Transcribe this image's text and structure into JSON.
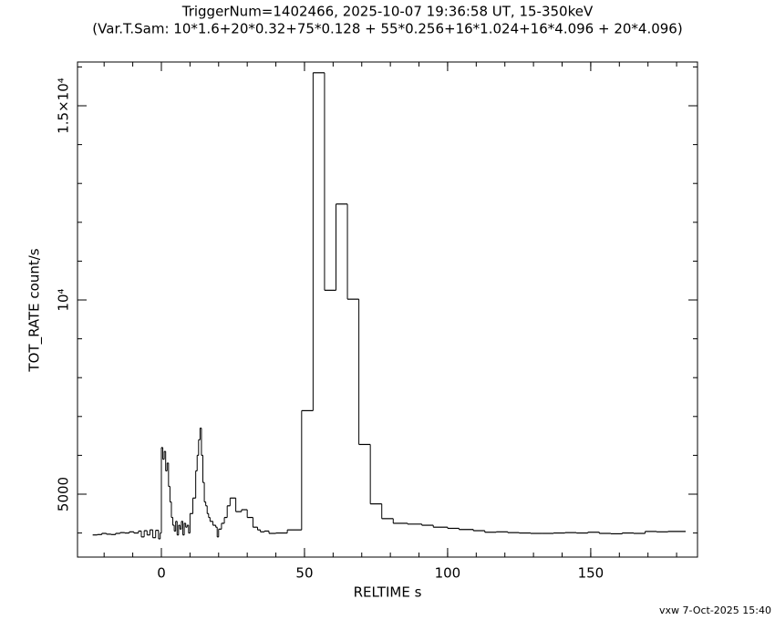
{
  "chart_data": {
    "type": "step",
    "title": "TriggerNum=1402466, 2025-10-07 19:36:58 UT, 15-350keV",
    "subtitle": "(Var.T.Sam: 10*1.6+20*0.32+75*0.128  +  55*0.256+16*1.024+16*4.096  +  20*4.096)",
    "x_label": "RELTIME  s",
    "y_label": "TOT_RATE  count/s",
    "footer": "vxw  7-Oct-2025 15:40",
    "color": "#000000",
    "xlim": [
      -29.3,
      187.3
    ],
    "ylim": [
      3380,
      16127
    ],
    "xticks": [
      0,
      50,
      100,
      150
    ],
    "yticks": [
      5000,
      {
        "value": 10000,
        "label": "10⁴"
      },
      {
        "value": 15000,
        "label": "1.5×10⁴"
      }
    ],
    "series": [
      {
        "name": "TOT_RATE",
        "x": [
          -24,
          -22.4,
          -20.8,
          -19.2,
          -17.6,
          -16,
          -14.4,
          -12.8,
          -11.2,
          -9.6,
          -8,
          -7,
          -6,
          -5,
          -4,
          -3,
          -2,
          -1,
          -0.4,
          0,
          0.5,
          1,
          1.5,
          2,
          2.5,
          3,
          3.5,
          4,
          4.5,
          5,
          5.5,
          6,
          6.5,
          7,
          7.5,
          8,
          8.5,
          9,
          9.5,
          10,
          11,
          12,
          12.5,
          13,
          13.5,
          14,
          14.5,
          15,
          15.5,
          16,
          16.5,
          17,
          18,
          19,
          19.5,
          20,
          21,
          22,
          23,
          24,
          26,
          28,
          30,
          32,
          33.6,
          34.6,
          36,
          37.6,
          40,
          44,
          49,
          53,
          57,
          61,
          65,
          69,
          73,
          77,
          81,
          86,
          91,
          95,
          100,
          104,
          109,
          113,
          117,
          121,
          125,
          129,
          133,
          137,
          141,
          145,
          149,
          153,
          157,
          161,
          165,
          169,
          173,
          177,
          183
        ],
        "values": [
          3950,
          3960,
          3990,
          3970,
          3960,
          3990,
          4010,
          4000,
          4030,
          4000,
          4050,
          3900,
          4060,
          3950,
          4080,
          3880,
          4070,
          3850,
          4000,
          6200,
          5900,
          6100,
          5600,
          5800,
          5200,
          4800,
          4400,
          4200,
          4050,
          4300,
          3950,
          4200,
          4100,
          4300,
          3950,
          4250,
          4150,
          4200,
          4000,
          4500,
          4900,
          5600,
          6000,
          6400,
          6700,
          6000,
          5300,
          4800,
          4700,
          4500,
          4400,
          4300,
          4200,
          4150,
          3900,
          4100,
          4250,
          4400,
          4700,
          4900,
          4550,
          4600,
          4400,
          4150,
          4080,
          4030,
          4050,
          3990,
          4000,
          4080,
          7150,
          15850,
          10250,
          12470,
          10020,
          6280,
          4750,
          4370,
          4250,
          4230,
          4200,
          4150,
          4120,
          4090,
          4060,
          4020,
          4030,
          4010,
          4000,
          3990,
          3990,
          4000,
          4010,
          4000,
          4020,
          3990,
          3980,
          4000,
          3990,
          4040,
          4030,
          4040,
          4040
        ]
      }
    ]
  }
}
